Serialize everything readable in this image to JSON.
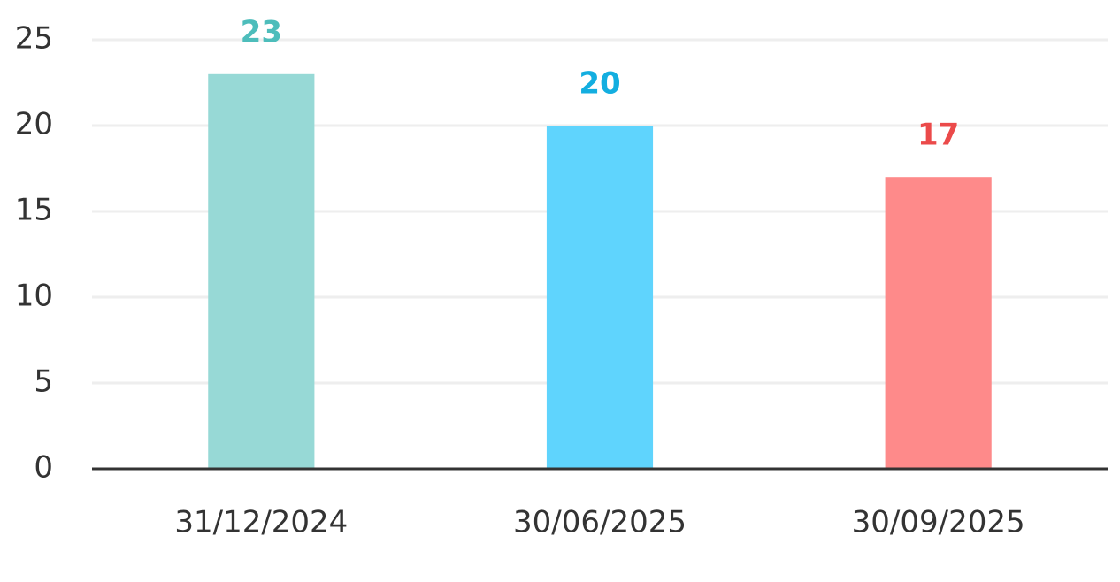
{
  "chart_data": {
    "type": "bar",
    "categories": [
      "31/12/2024",
      "30/06/2025",
      "30/09/2025"
    ],
    "values": [
      23,
      20,
      17
    ],
    "colors": [
      "#97d9d6",
      "#5fd4fd",
      "#fe8a8a"
    ],
    "label_colors": [
      "#4dbdbb",
      "#13aee0",
      "#eb4a4a"
    ],
    "ylim": [
      0,
      25
    ],
    "yticks": [
      0,
      5,
      10,
      15,
      20,
      25
    ],
    "grid": true
  }
}
